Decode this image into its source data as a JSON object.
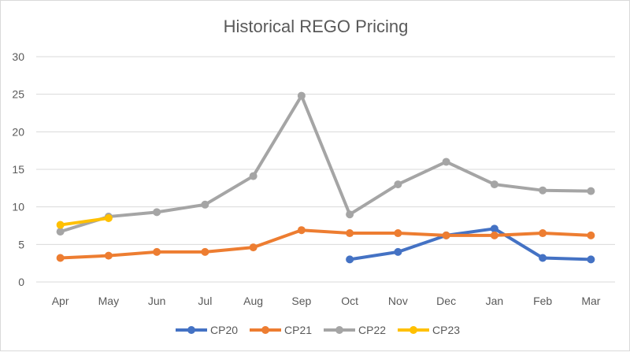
{
  "chart_data": {
    "type": "line",
    "title": "Historical REGO Pricing",
    "xlabel": "",
    "ylabel": "",
    "categories": [
      "Apr",
      "May",
      "Jun",
      "Jul",
      "Aug",
      "Sep",
      "Oct",
      "Nov",
      "Dec",
      "Jan",
      "Feb",
      "Mar"
    ],
    "ylim": [
      0,
      30
    ],
    "yticks": [
      0,
      5,
      10,
      15,
      20,
      25,
      30
    ],
    "grid": true,
    "legend": "bottom",
    "series": [
      {
        "name": "CP20",
        "color": "#4472c4",
        "values": [
          null,
          null,
          null,
          null,
          null,
          null,
          3.0,
          4.0,
          6.2,
          7.1,
          3.2,
          3.0
        ]
      },
      {
        "name": "CP21",
        "color": "#ed7d31",
        "values": [
          3.2,
          3.5,
          4.0,
          4.0,
          4.6,
          6.9,
          6.5,
          6.5,
          6.2,
          6.2,
          6.5,
          6.2
        ]
      },
      {
        "name": "CP22",
        "color": "#a5a5a5",
        "values": [
          6.7,
          8.7,
          9.3,
          10.3,
          14.1,
          24.8,
          9.0,
          13.0,
          16.0,
          13.0,
          12.2,
          12.1
        ]
      },
      {
        "name": "CP23",
        "color": "#ffc000",
        "values": [
          7.6,
          8.5,
          null,
          null,
          null,
          null,
          null,
          null,
          null,
          null,
          null,
          null
        ]
      }
    ]
  }
}
